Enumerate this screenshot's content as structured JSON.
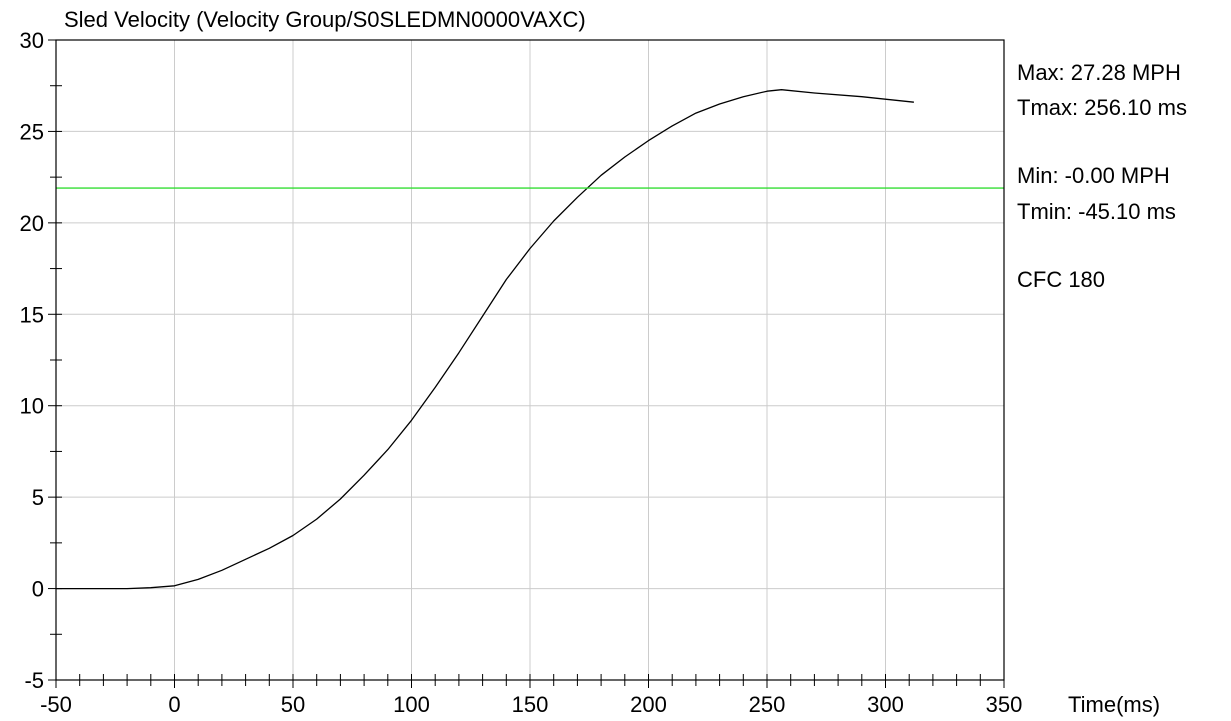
{
  "chart_data": {
    "type": "line",
    "title": "Sled Velocity (Velocity Group/S0SLEDMN0000VAXC)",
    "xlabel": "Time(ms)",
    "ylabel": "",
    "xlim": [
      -50,
      350
    ],
    "ylim": [
      -5,
      30
    ],
    "x_major_ticks": [
      -50,
      0,
      50,
      100,
      150,
      200,
      250,
      300,
      350
    ],
    "x_tick_labels": [
      "-50",
      "0",
      "50",
      "100",
      "150",
      "200",
      "250",
      "300",
      "350"
    ],
    "y_major_ticks": [
      -5,
      0,
      5,
      10,
      15,
      20,
      25,
      30
    ],
    "y_tick_labels": [
      "-5",
      "0",
      "5",
      "10",
      "15",
      "20",
      "25",
      "30"
    ],
    "grid": true,
    "series": [
      {
        "color": "#000000",
        "x": [
          -50,
          -20,
          -10,
          0,
          10,
          20,
          30,
          40,
          50,
          60,
          70,
          80,
          90,
          100,
          110,
          120,
          130,
          140,
          150,
          160,
          170,
          180,
          190,
          200,
          210,
          220,
          230,
          240,
          250,
          256.1,
          270,
          290,
          312
        ],
        "y": [
          0,
          0,
          0.05,
          0.15,
          0.5,
          1.0,
          1.6,
          2.2,
          2.9,
          3.8,
          4.9,
          6.2,
          7.6,
          9.2,
          11.0,
          12.9,
          14.9,
          16.9,
          18.6,
          20.1,
          21.4,
          22.6,
          23.6,
          24.5,
          25.3,
          26.0,
          26.5,
          26.9,
          27.2,
          27.28,
          27.1,
          26.9,
          26.6
        ]
      },
      {
        "color": "#33dd33",
        "x": [
          -50,
          350
        ],
        "y": [
          21.9,
          21.9
        ]
      }
    ],
    "annotations": {
      "max": "Max: 27.28 MPH",
      "tmax": "Tmax: 256.10 ms",
      "min": "Min: -0.00 MPH",
      "tmin": "Tmin: -45.10 ms",
      "filter": "CFC 180"
    }
  }
}
